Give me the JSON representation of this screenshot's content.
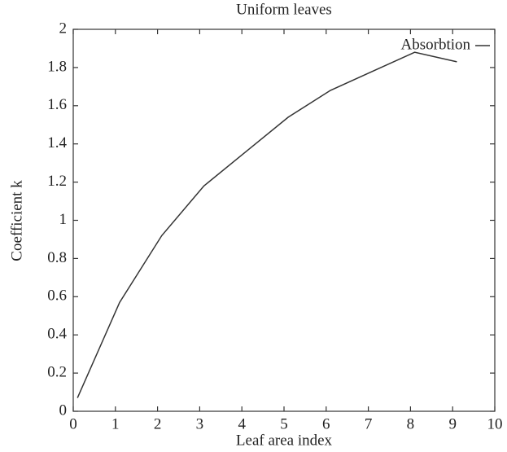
{
  "chart_data": {
    "type": "line",
    "title": "Uniform leaves",
    "xlabel": "Leaf area index",
    "ylabel": "Coefficient k",
    "x": [
      0.1,
      1.1,
      2.1,
      3.1,
      4.1,
      5.1,
      6.1,
      7.1,
      8.1,
      9.1
    ],
    "series": [
      {
        "name": "Absorbtion",
        "color": "#333333",
        "values": [
          0.07,
          0.57,
          0.92,
          1.18,
          1.36,
          1.54,
          1.68,
          1.78,
          1.88,
          1.83
        ]
      }
    ],
    "xlim": [
      0,
      10
    ],
    "xticks": [
      0,
      1,
      2,
      3,
      4,
      5,
      6,
      7,
      8,
      9,
      10
    ],
    "ylim": [
      0,
      2
    ],
    "yticks": [
      0,
      0.2,
      0.4,
      0.6,
      0.8,
      1,
      1.2,
      1.4,
      1.6,
      1.8,
      2
    ],
    "grid": false,
    "legend": "upper right"
  }
}
